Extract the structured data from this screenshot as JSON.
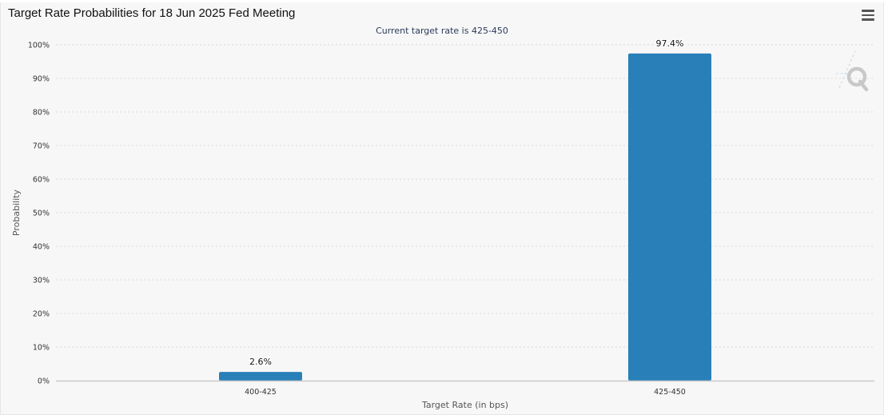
{
  "header": {
    "title": "Target Rate Probabilities for 18 Jun 2025 Fed Meeting",
    "subtitle": "Current target rate is 425-450",
    "menu_icon": "hamburger-menu-icon",
    "watermark_icon": "quikstrike-logo-icon"
  },
  "colors": {
    "bar": "#2980b9",
    "plot_background": "#f7f7f7",
    "grid": "#d9d9d9"
  },
  "chart_data": {
    "type": "bar",
    "title": "Target Rate Probabilities for 18 Jun 2025 Fed Meeting",
    "subtitle": "Current target rate is 425-450",
    "xlabel": "Target Rate (in bps)",
    "ylabel": "Probability",
    "categories": [
      "400-425",
      "425-450"
    ],
    "values": [
      2.6,
      97.4
    ],
    "data_labels": [
      "2.6%",
      "97.4%"
    ],
    "ylim": [
      0,
      100
    ],
    "yticks": [
      0,
      10,
      20,
      30,
      40,
      50,
      60,
      70,
      80,
      90,
      100
    ],
    "ytick_labels": [
      "0%",
      "10%",
      "20%",
      "30%",
      "40%",
      "50%",
      "60%",
      "70%",
      "80%",
      "90%",
      "100%"
    ],
    "grid": true,
    "legend": "none"
  }
}
